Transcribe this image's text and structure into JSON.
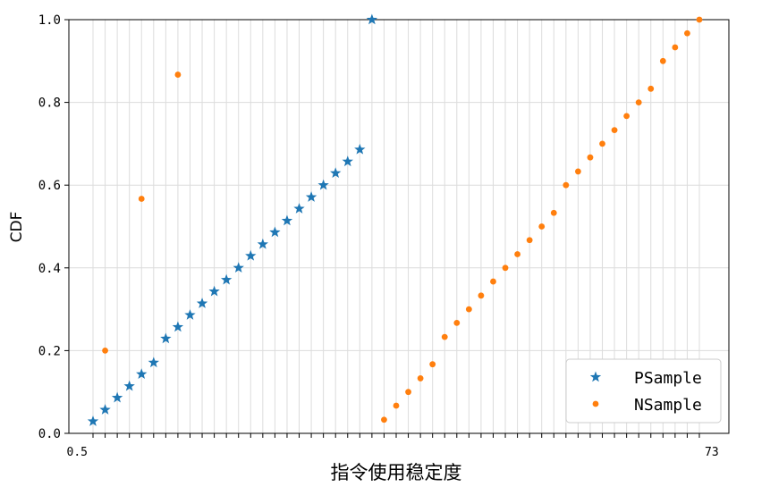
{
  "chart_data": {
    "type": "scatter",
    "title": "",
    "xlabel": "指令使用稳定度",
    "ylabel": "CDF",
    "ylim": [
      0,
      1
    ],
    "yticks": [
      "0.0",
      "0.2",
      "0.4",
      "0.6",
      "0.8",
      "1.0"
    ],
    "x_axis": "categorical",
    "x_tick_count": 51,
    "x_tick_labels_visible": [
      "0.5",
      "73"
    ],
    "grid": true,
    "legend_position": "lower-right",
    "series": [
      {
        "name": "PSample",
        "marker": "star",
        "color": "#1f77b4",
        "points": [
          {
            "x": 0,
            "y": 0.029
          },
          {
            "x": 1,
            "y": 0.057
          },
          {
            "x": 2,
            "y": 0.086
          },
          {
            "x": 3,
            "y": 0.114
          },
          {
            "x": 4,
            "y": 0.143
          },
          {
            "x": 5,
            "y": 0.171
          },
          {
            "x": 6,
            "y": 0.229
          },
          {
            "x": 7,
            "y": 0.257
          },
          {
            "x": 8,
            "y": 0.286
          },
          {
            "x": 9,
            "y": 0.314
          },
          {
            "x": 10,
            "y": 0.343
          },
          {
            "x": 11,
            "y": 0.371
          },
          {
            "x": 12,
            "y": 0.4
          },
          {
            "x": 13,
            "y": 0.429
          },
          {
            "x": 14,
            "y": 0.457
          },
          {
            "x": 15,
            "y": 0.486
          },
          {
            "x": 16,
            "y": 0.514
          },
          {
            "x": 17,
            "y": 0.543
          },
          {
            "x": 18,
            "y": 0.571
          },
          {
            "x": 19,
            "y": 0.6
          },
          {
            "x": 20,
            "y": 0.629
          },
          {
            "x": 21,
            "y": 0.657
          },
          {
            "x": 22,
            "y": 0.686
          },
          {
            "x": 23,
            "y": 1.0
          }
        ]
      },
      {
        "name": "NSample",
        "marker": "circle",
        "color": "#ff7f0e",
        "points": [
          {
            "x": 1,
            "y": 0.2
          },
          {
            "x": 4,
            "y": 0.567
          },
          {
            "x": 7,
            "y": 0.867
          },
          {
            "x": 24,
            "y": 0.033
          },
          {
            "x": 25,
            "y": 0.067
          },
          {
            "x": 26,
            "y": 0.1
          },
          {
            "x": 27,
            "y": 0.133
          },
          {
            "x": 28,
            "y": 0.167
          },
          {
            "x": 29,
            "y": 0.233
          },
          {
            "x": 30,
            "y": 0.267
          },
          {
            "x": 31,
            "y": 0.3
          },
          {
            "x": 32,
            "y": 0.333
          },
          {
            "x": 33,
            "y": 0.367
          },
          {
            "x": 34,
            "y": 0.4
          },
          {
            "x": 35,
            "y": 0.433
          },
          {
            "x": 36,
            "y": 0.467
          },
          {
            "x": 37,
            "y": 0.5
          },
          {
            "x": 38,
            "y": 0.533
          },
          {
            "x": 39,
            "y": 0.6
          },
          {
            "x": 40,
            "y": 0.633
          },
          {
            "x": 41,
            "y": 0.667
          },
          {
            "x": 42,
            "y": 0.7
          },
          {
            "x": 43,
            "y": 0.733
          },
          {
            "x": 44,
            "y": 0.767
          },
          {
            "x": 45,
            "y": 0.8
          },
          {
            "x": 46,
            "y": 0.833
          },
          {
            "x": 47,
            "y": 0.9
          },
          {
            "x": 48,
            "y": 0.933
          },
          {
            "x": 49,
            "y": 0.967
          },
          {
            "x": 50,
            "y": 1.0
          }
        ]
      }
    ]
  }
}
